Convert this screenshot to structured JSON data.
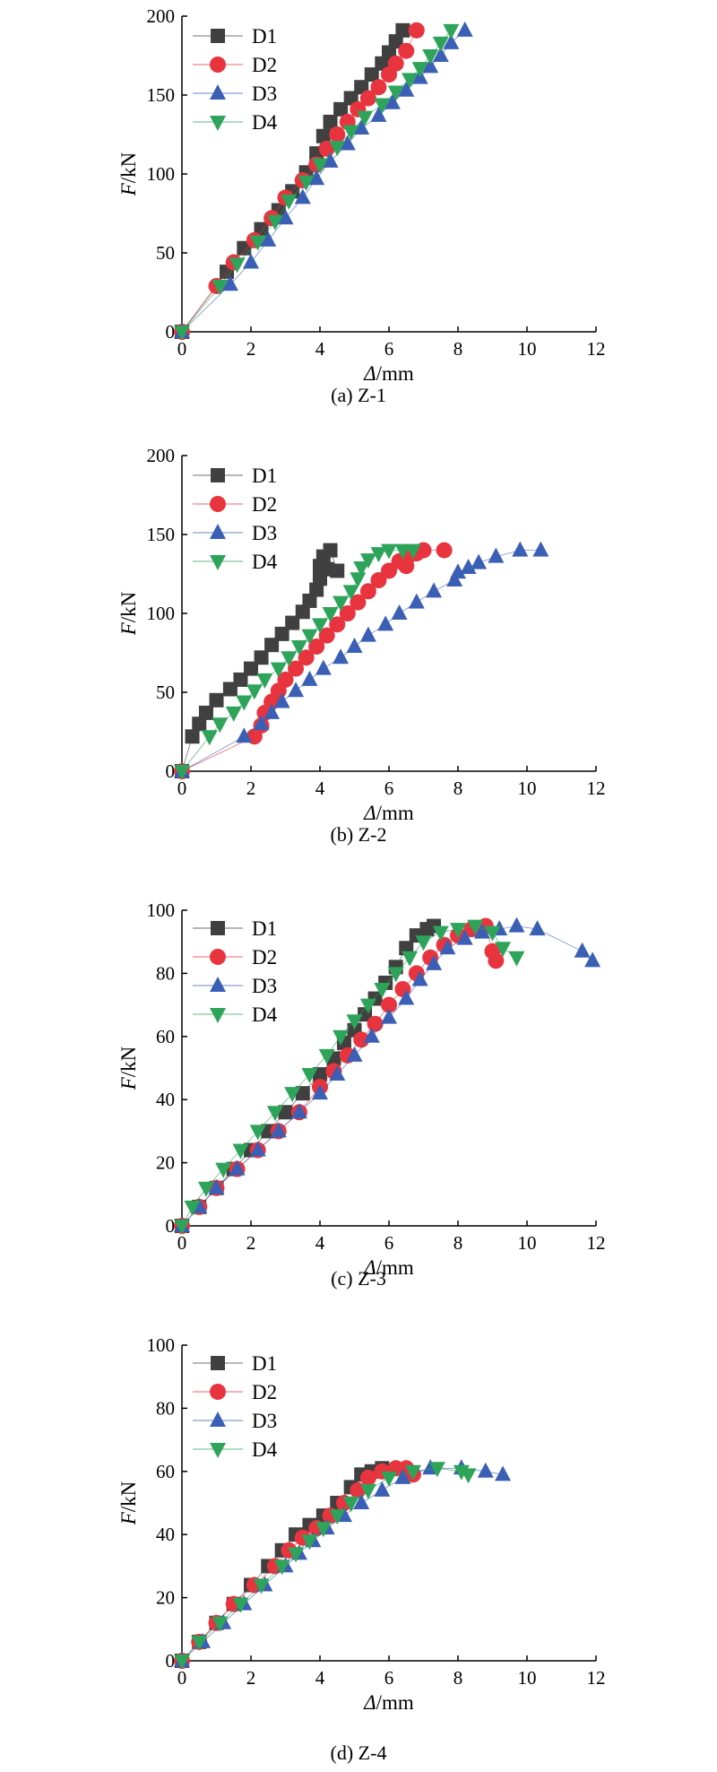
{
  "chart_data": [
    {
      "type": "scatter",
      "caption": "(a) Z-1",
      "xlabel_italic": "Δ",
      "xlabel_unit": "/mm",
      "ylabel_italic": "F",
      "ylabel_unit": "/kN",
      "xlim": [
        0,
        12
      ],
      "ylim": [
        0,
        200
      ],
      "xticks": [
        0,
        2,
        4,
        6,
        8,
        10,
        12
      ],
      "yticks": [
        0,
        50,
        100,
        150,
        200
      ],
      "legend_position": "top-left",
      "series": [
        {
          "name": "D1",
          "marker": "square",
          "color": "#404040",
          "x": [
            0,
            1.3,
            1.8,
            2.3,
            2.8,
            3.2,
            3.6,
            3.9,
            4.1,
            4.3,
            4.6,
            4.9,
            5.2,
            5.5,
            5.8,
            6.0,
            6.2,
            6.4
          ],
          "y": [
            0,
            38,
            53,
            65,
            77,
            89,
            101,
            113,
            124,
            133,
            141,
            148,
            155,
            163,
            170,
            177,
            184,
            191
          ]
        },
        {
          "name": "D2",
          "marker": "circle",
          "color": "#e8343e",
          "x": [
            0,
            1.0,
            1.5,
            2.1,
            2.6,
            3.0,
            3.5,
            3.9,
            4.2,
            4.5,
            4.8,
            5.1,
            5.4,
            5.7,
            6.0,
            6.2,
            6.5,
            6.8
          ],
          "y": [
            0,
            29,
            44,
            58,
            72,
            85,
            96,
            106,
            116,
            125,
            133,
            141,
            148,
            155,
            163,
            170,
            178,
            191
          ]
        },
        {
          "name": "D3",
          "marker": "triangle-up",
          "color": "#3a5fb5",
          "x": [
            0,
            1.4,
            2.0,
            2.5,
            3.0,
            3.5,
            3.9,
            4.3,
            4.8,
            5.2,
            5.7,
            6.1,
            6.5,
            6.9,
            7.2,
            7.5,
            7.8,
            8.2
          ],
          "y": [
            0,
            30,
            44,
            58,
            72,
            85,
            97,
            108,
            119,
            129,
            137,
            145,
            153,
            161,
            168,
            175,
            183,
            191
          ]
        },
        {
          "name": "D4",
          "marker": "triangle-down",
          "color": "#2ea35a",
          "x": [
            0,
            1.1,
            1.6,
            2.2,
            2.7,
            3.1,
            3.6,
            4.0,
            4.5,
            4.9,
            5.3,
            5.8,
            6.2,
            6.6,
            6.9,
            7.2,
            7.5,
            7.8
          ],
          "y": [
            0,
            29,
            43,
            57,
            70,
            83,
            95,
            106,
            117,
            127,
            136,
            144,
            152,
            160,
            167,
            175,
            183,
            191
          ]
        }
      ]
    },
    {
      "type": "scatter",
      "caption": "(b) Z-2",
      "xlabel_italic": "Δ",
      "xlabel_unit": "/mm",
      "ylabel_italic": "F",
      "ylabel_unit": "/kN",
      "xlim": [
        0,
        12
      ],
      "ylim": [
        0,
        200
      ],
      "xticks": [
        0,
        2,
        4,
        6,
        8,
        10,
        12
      ],
      "yticks": [
        0,
        50,
        100,
        150,
        200
      ],
      "legend_position": "top-left",
      "series": [
        {
          "name": "D1",
          "marker": "square",
          "color": "#404040",
          "x": [
            0,
            0.3,
            0.5,
            0.7,
            1.0,
            1.4,
            1.7,
            2.0,
            2.3,
            2.6,
            2.9,
            3.2,
            3.5,
            3.7,
            3.9,
            4.0,
            4.0,
            4.1,
            4.3,
            4.5,
            4.2
          ],
          "y": [
            0,
            22,
            30,
            37,
            45,
            52,
            58,
            65,
            72,
            80,
            87,
            94,
            101,
            108,
            115,
            122,
            130,
            136,
            140,
            127,
            128
          ]
        },
        {
          "name": "D2",
          "marker": "circle",
          "color": "#e8343e",
          "x": [
            0,
            2.1,
            2.3,
            2.4,
            2.6,
            2.8,
            3.0,
            3.3,
            3.6,
            3.9,
            4.2,
            4.5,
            4.8,
            5.1,
            5.4,
            5.7,
            6.0,
            6.3,
            6.5,
            6.6,
            6.8,
            7.0,
            7.6
          ],
          "y": [
            0,
            22,
            29,
            37,
            44,
            51,
            58,
            65,
            72,
            79,
            86,
            93,
            100,
            107,
            114,
            121,
            127,
            133,
            130,
            137,
            138,
            140,
            140
          ]
        },
        {
          "name": "D3",
          "marker": "triangle-up",
          "color": "#3a5fb5",
          "x": [
            0,
            1.8,
            2.3,
            2.6,
            2.9,
            3.3,
            3.7,
            4.1,
            4.6,
            5.0,
            5.4,
            5.9,
            6.3,
            6.8,
            7.3,
            7.9,
            8.0,
            8.3,
            8.6,
            9.1,
            9.8,
            10.4
          ],
          "y": [
            0,
            22,
            30,
            37,
            44,
            51,
            58,
            65,
            72,
            79,
            86,
            93,
            100,
            107,
            114,
            121,
            126,
            129,
            132,
            136,
            140,
            140
          ]
        },
        {
          "name": "D4",
          "marker": "triangle-down",
          "color": "#2ea35a",
          "x": [
            0,
            0.8,
            1.1,
            1.5,
            1.8,
            2.1,
            2.4,
            2.8,
            3.1,
            3.4,
            3.7,
            4.0,
            4.3,
            4.6,
            4.9,
            5.1,
            5.2,
            5.4,
            5.7,
            6.0,
            6.4,
            6.7
          ],
          "y": [
            0,
            22,
            30,
            37,
            44,
            51,
            58,
            65,
            72,
            79,
            86,
            93,
            100,
            107,
            114,
            122,
            129,
            134,
            138,
            140,
            140,
            140
          ]
        }
      ]
    },
    {
      "type": "scatter",
      "caption": "(c) Z-3",
      "xlabel_italic": "Δ",
      "xlabel_unit": "/mm",
      "ylabel_italic": "F",
      "ylabel_unit": "/kN",
      "xlim": [
        0,
        12
      ],
      "ylim": [
        0,
        100
      ],
      "xticks": [
        0,
        2,
        4,
        6,
        8,
        10,
        12
      ],
      "yticks": [
        0,
        20,
        40,
        60,
        80,
        100
      ],
      "legend_position": "top-left",
      "series": [
        {
          "name": "D1",
          "marker": "square",
          "color": "#404040",
          "x": [
            0,
            0.5,
            1.0,
            1.5,
            2.0,
            2.5,
            3.0,
            3.5,
            4.0,
            4.4,
            4.7,
            5.0,
            5.3,
            5.6,
            5.9,
            6.2,
            6.5,
            6.8,
            7.1,
            7.3
          ],
          "y": [
            0,
            6,
            12,
            18,
            24,
            30,
            36,
            42,
            48,
            53,
            58,
            62,
            67,
            72,
            77,
            82,
            88,
            92,
            94,
            95
          ]
        },
        {
          "name": "D2",
          "marker": "circle",
          "color": "#e8343e",
          "x": [
            0,
            0.5,
            1.0,
            1.6,
            2.2,
            2.8,
            3.4,
            4.0,
            4.4,
            4.8,
            5.2,
            5.6,
            6.0,
            6.4,
            6.8,
            7.2,
            7.6,
            8.0,
            8.4,
            8.8,
            9.0,
            9.1
          ],
          "y": [
            0,
            6,
            12,
            18,
            24,
            30,
            36,
            44,
            49,
            54,
            59,
            64,
            70,
            75,
            80,
            85,
            89,
            92,
            94,
            95,
            87,
            84
          ]
        },
        {
          "name": "D3",
          "marker": "triangle-up",
          "color": "#3a5fb5",
          "x": [
            0,
            0.5,
            1.0,
            1.6,
            2.2,
            2.8,
            3.4,
            4.0,
            4.5,
            5.0,
            5.5,
            6.0,
            6.5,
            6.9,
            7.3,
            7.7,
            8.2,
            8.7,
            9.2,
            9.7,
            10.3,
            11.6,
            11.9
          ],
          "y": [
            0,
            6,
            12,
            18,
            24,
            30,
            36,
            42,
            48,
            54,
            60,
            66,
            72,
            78,
            83,
            88,
            91,
            93,
            94,
            95,
            94,
            87,
            84
          ]
        },
        {
          "name": "D4",
          "marker": "triangle-down",
          "color": "#2ea35a",
          "x": [
            0,
            0.3,
            0.7,
            1.2,
            1.7,
            2.2,
            2.7,
            3.2,
            3.7,
            4.2,
            4.6,
            5.0,
            5.4,
            5.8,
            6.2,
            6.6,
            7.0,
            7.5,
            8.0,
            8.5,
            9.0,
            9.3,
            9.7
          ],
          "y": [
            0,
            6,
            12,
            18,
            24,
            30,
            36,
            42,
            48,
            54,
            60,
            65,
            70,
            75,
            80,
            85,
            90,
            93,
            94,
            95,
            93,
            88,
            85
          ]
        }
      ]
    },
    {
      "type": "scatter",
      "caption": "(d) Z-4",
      "xlabel_italic": "Δ",
      "xlabel_unit": "/mm",
      "ylabel_italic": "F",
      "ylabel_unit": "/kN",
      "xlim": [
        0,
        12
      ],
      "ylim": [
        0,
        100
      ],
      "xticks": [
        0,
        2,
        4,
        6,
        8,
        10,
        12
      ],
      "yticks": [
        0,
        20,
        40,
        60,
        80,
        100
      ],
      "legend_position": "top-left",
      "series": [
        {
          "name": "D1",
          "marker": "square",
          "color": "#404040",
          "x": [
            0,
            0.5,
            1.0,
            1.5,
            2.0,
            2.5,
            2.9,
            3.3,
            3.7,
            4.1,
            4.5,
            4.9,
            5.2,
            5.5,
            5.8
          ],
          "y": [
            0,
            6,
            12,
            18,
            24,
            30,
            35,
            40,
            43,
            46,
            50,
            55,
            59,
            60,
            61
          ]
        },
        {
          "name": "D2",
          "marker": "circle",
          "color": "#e8343e",
          "x": [
            0,
            0.5,
            1.0,
            1.5,
            2.1,
            2.7,
            3.1,
            3.5,
            3.9,
            4.3,
            4.7,
            5.1,
            5.4,
            5.8,
            6.2,
            6.5,
            6.7
          ],
          "y": [
            0,
            6,
            12,
            18,
            24,
            30,
            35,
            39,
            42,
            46,
            50,
            54,
            58,
            60,
            61,
            61,
            59
          ]
        },
        {
          "name": "D3",
          "marker": "triangle-up",
          "color": "#3a5fb5",
          "x": [
            0,
            0.6,
            1.2,
            1.8,
            2.4,
            3.0,
            3.4,
            3.8,
            4.2,
            4.7,
            5.2,
            5.8,
            6.4,
            7.2,
            8.1,
            8.8,
            9.3
          ],
          "y": [
            0,
            6,
            12,
            18,
            24,
            30,
            34,
            38,
            42,
            46,
            50,
            54,
            58,
            61,
            61,
            60,
            59
          ]
        },
        {
          "name": "D4",
          "marker": "triangle-down",
          "color": "#2ea35a",
          "x": [
            0,
            0.5,
            1.1,
            1.7,
            2.3,
            2.9,
            3.3,
            3.7,
            4.1,
            4.5,
            4.9,
            5.4,
            6.0,
            6.7,
            7.4,
            8.1,
            8.3
          ],
          "y": [
            0,
            6,
            12,
            18,
            24,
            30,
            34,
            38,
            42,
            46,
            50,
            54,
            58,
            60,
            61,
            60,
            59
          ]
        }
      ]
    }
  ]
}
